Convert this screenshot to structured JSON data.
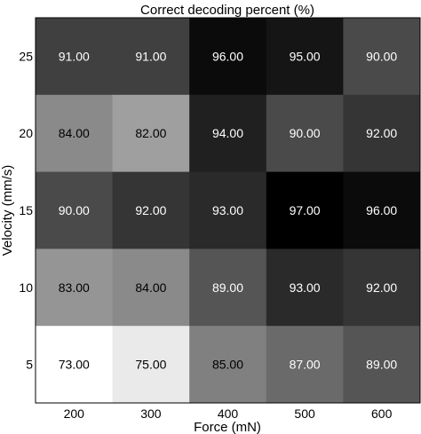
{
  "chart_data": {
    "type": "heatmap",
    "title": "Correct decoding percent (%)",
    "xlabel": "Force (mN)",
    "ylabel": "Velocity (mm/s)",
    "x_categories": [
      "200",
      "300",
      "400",
      "500",
      "600"
    ],
    "y_categories": [
      "25",
      "20",
      "15",
      "10",
      "5"
    ],
    "values": [
      [
        91.0,
        91.0,
        96.0,
        95.0,
        90.0
      ],
      [
        84.0,
        82.0,
        94.0,
        90.0,
        92.0
      ],
      [
        90.0,
        92.0,
        93.0,
        97.0,
        96.0
      ],
      [
        83.0,
        84.0,
        89.0,
        93.0,
        92.0
      ],
      [
        73.0,
        75.0,
        85.0,
        87.0,
        89.0
      ]
    ],
    "value_labels": [
      [
        "91.00",
        "91.00",
        "96.00",
        "95.00",
        "90.00"
      ],
      [
        "84.00",
        "82.00",
        "94.00",
        "90.00",
        "92.00"
      ],
      [
        "90.00",
        "92.00",
        "93.00",
        "97.00",
        "96.00"
      ],
      [
        "83.00",
        "84.00",
        "89.00",
        "93.00",
        "92.00"
      ],
      [
        "73.00",
        "75.00",
        "85.00",
        "87.00",
        "89.00"
      ]
    ],
    "color_scale": {
      "min_value": 73,
      "max_value": 97,
      "min_color": "#ffffff",
      "max_color": "#000000"
    },
    "grid": false,
    "legend": "none"
  }
}
